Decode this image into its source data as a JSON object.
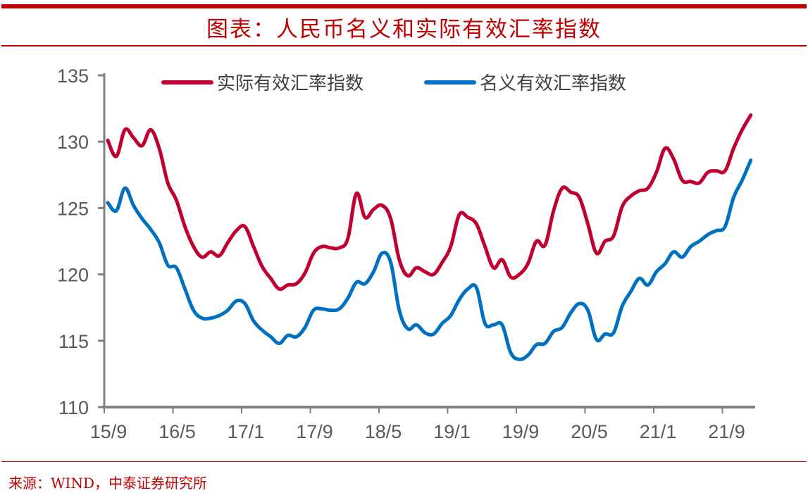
{
  "title": "图表：人民币名义和实际有效汇率指数",
  "source": "来源：WIND，中泰证券研究所",
  "chart_data": {
    "type": "line",
    "title": "",
    "xlabel": "",
    "ylabel": "",
    "ylim": [
      110,
      135
    ],
    "yticks": [
      "110",
      "115",
      "120",
      "125",
      "130",
      "135"
    ],
    "xtick_labels": [
      "15/9",
      "16/5",
      "17/1",
      "17/9",
      "18/5",
      "19/1",
      "19/9",
      "20/5",
      "21/1",
      "21/9"
    ],
    "grid": false,
    "legend": "top",
    "x": [
      "15/9",
      "15/10",
      "15/11",
      "15/12",
      "16/1",
      "16/2",
      "16/3",
      "16/4",
      "16/5",
      "16/6",
      "16/7",
      "16/8",
      "16/9",
      "16/10",
      "16/11",
      "16/12",
      "17/1",
      "17/2",
      "17/3",
      "17/4",
      "17/5",
      "17/6",
      "17/7",
      "17/8",
      "17/9",
      "17/10",
      "17/11",
      "17/12",
      "18/1",
      "18/2",
      "18/3",
      "18/4",
      "18/5",
      "18/6",
      "18/7",
      "18/8",
      "18/9",
      "18/10",
      "18/11",
      "18/12",
      "19/1",
      "19/2",
      "19/3",
      "19/4",
      "19/5",
      "19/6",
      "19/7",
      "19/8",
      "19/9",
      "19/10",
      "19/11",
      "19/12",
      "20/1",
      "20/2",
      "20/3",
      "20/4",
      "20/5",
      "20/6",
      "20/7",
      "20/8",
      "20/9",
      "20/10",
      "20/11",
      "20/12",
      "21/1",
      "21/2",
      "21/3",
      "21/4",
      "21/5",
      "21/6",
      "21/7",
      "21/8",
      "21/9",
      "21/10",
      "21/11",
      "21/12"
    ],
    "series": [
      {
        "name": "实际有效汇率指数",
        "color": "#C0002E",
        "values": [
          130.1,
          128.9,
          130.9,
          130.3,
          129.7,
          130.9,
          129.5,
          126.9,
          125.6,
          123.6,
          122.1,
          121.3,
          121.7,
          121.4,
          122.4,
          123.3,
          123.6,
          122.1,
          120.6,
          119.7,
          118.9,
          119.2,
          119.3,
          120.1,
          121.6,
          122.1,
          122.0,
          122.0,
          122.7,
          126.1,
          124.3,
          124.9,
          125.2,
          124.2,
          121.1,
          119.9,
          120.5,
          120.2,
          120.0,
          120.9,
          122.1,
          124.5,
          124.3,
          123.8,
          122.1,
          120.5,
          121.1,
          119.8,
          120.0,
          120.8,
          122.5,
          122.2,
          124.8,
          126.5,
          126.2,
          125.8,
          123.8,
          121.6,
          122.5,
          122.9,
          125.1,
          125.9,
          126.3,
          126.5,
          127.7,
          129.5,
          128.7,
          127.1,
          127.0,
          126.9,
          127.7,
          127.8,
          127.8,
          129.5,
          130.9,
          132.0
        ]
      },
      {
        "name": "名义有效汇率指数",
        "color": "#0070C0",
        "values": [
          125.4,
          124.8,
          126.5,
          125.2,
          124.2,
          123.4,
          122.4,
          120.7,
          120.5,
          118.9,
          117.3,
          116.7,
          116.7,
          116.9,
          117.3,
          118.0,
          117.8,
          116.5,
          115.8,
          115.3,
          114.8,
          115.4,
          115.3,
          116.0,
          117.3,
          117.4,
          117.3,
          117.4,
          118.2,
          119.4,
          119.3,
          120.2,
          121.6,
          120.9,
          117.3,
          115.9,
          116.2,
          115.6,
          115.5,
          116.3,
          116.9,
          118.1,
          118.9,
          119.0,
          116.3,
          116.2,
          116.2,
          114.1,
          113.6,
          113.9,
          114.7,
          114.8,
          115.7,
          116.0,
          117.1,
          117.8,
          117.3,
          115.1,
          115.5,
          115.6,
          117.6,
          118.7,
          119.7,
          119.2,
          120.2,
          120.8,
          121.7,
          121.3,
          122.1,
          122.5,
          123.0,
          123.3,
          123.6,
          125.8,
          127.1,
          128.6
        ]
      }
    ]
  }
}
